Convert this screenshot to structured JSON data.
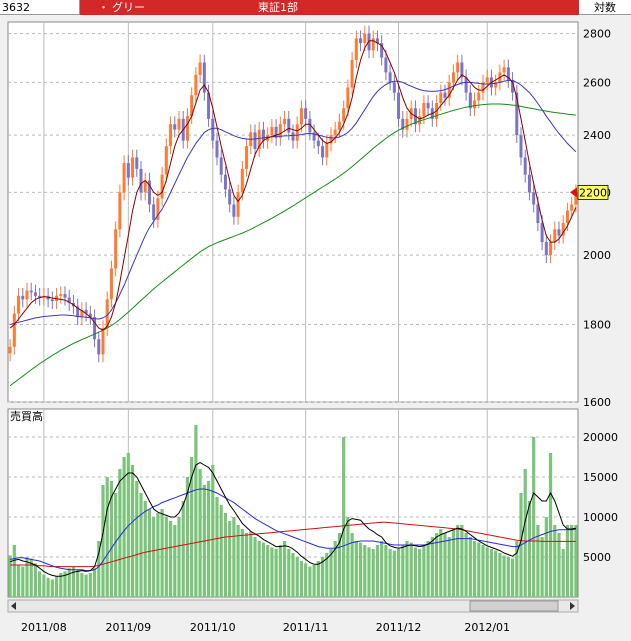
{
  "header": {
    "code": "3632",
    "bullet": "・",
    "name": "グリー",
    "market": "東証1部",
    "scale": "対数"
  },
  "colors": {
    "up": "#ff7a33",
    "down": "#7b74c6",
    "ma_short": "#8b0000",
    "ma_mid": "#3b36b8",
    "ma_long": "#1a8a1a",
    "volume_bar": "#7cc47c",
    "vol_ma_short": "#000000",
    "vol_ma_mid": "#2a2ad0",
    "vol_ma_long": "#d01010",
    "price_tag": "#ffff66",
    "price_arrow": "#e01010"
  },
  "chart_data": [
    {
      "type": "line",
      "panel": "price",
      "ylim": [
        1600,
        2850
      ],
      "yscale": "log",
      "yticks": [
        "1600",
        "1800",
        "2000",
        "2200",
        "2400",
        "2600",
        "2800"
      ],
      "xticks": [
        "2011/08",
        "2011/09",
        "2011/10",
        "2011/11",
        "2011/12",
        "2012/01"
      ],
      "current_price_label": "2200",
      "close": [
        1740,
        1830,
        1880,
        1870,
        1895,
        1890,
        1880,
        1875,
        1880,
        1870,
        1865,
        1880,
        1885,
        1875,
        1860,
        1850,
        1820,
        1840,
        1830,
        1820,
        1760,
        1720,
        1790,
        1870,
        1960,
        2080,
        2200,
        2300,
        2250,
        2320,
        2280,
        2200,
        2240,
        2160,
        2110,
        2180,
        2260,
        2360,
        2440,
        2420,
        2460,
        2380,
        2470,
        2550,
        2630,
        2680,
        2560,
        2460,
        2380,
        2320,
        2260,
        2210,
        2160,
        2120,
        2200,
        2280,
        2360,
        2410,
        2350,
        2420,
        2380,
        2400,
        2430,
        2390,
        2440,
        2460,
        2410,
        2380,
        2440,
        2500,
        2460,
        2410,
        2380,
        2360,
        2320,
        2370,
        2400,
        2420,
        2450,
        2500,
        2580,
        2690,
        2780,
        2760,
        2800,
        2730,
        2780,
        2760,
        2700,
        2640,
        2600,
        2560,
        2460,
        2420,
        2460,
        2500,
        2440,
        2470,
        2520,
        2500,
        2460,
        2520,
        2560,
        2540,
        2600,
        2640,
        2680,
        2620,
        2560,
        2500,
        2530,
        2560,
        2600,
        2620,
        2580,
        2600,
        2640,
        2660,
        2610,
        2560,
        2400,
        2320,
        2260,
        2200,
        2160,
        2100,
        2040,
        2000,
        2040,
        2080,
        2060,
        2100,
        2140,
        2160,
        2200
      ],
      "ma_short": [
        1790,
        1800,
        1815,
        1830,
        1845,
        1860,
        1870,
        1875,
        1878,
        1876,
        1874,
        1872,
        1870,
        1868,
        1862,
        1855,
        1845,
        1838,
        1830,
        1820,
        1805,
        1790,
        1785,
        1795,
        1820,
        1860,
        1920,
        1990,
        2060,
        2140,
        2200,
        2230,
        2240,
        2225,
        2200,
        2190,
        2200,
        2240,
        2300,
        2360,
        2400,
        2420,
        2440,
        2470,
        2520,
        2570,
        2590,
        2560,
        2500,
        2430,
        2360,
        2300,
        2240,
        2190,
        2170,
        2190,
        2230,
        2280,
        2330,
        2360,
        2380,
        2390,
        2395,
        2400,
        2405,
        2415,
        2425,
        2420,
        2415,
        2425,
        2440,
        2440,
        2420,
        2400,
        2380,
        2370,
        2375,
        2390,
        2410,
        2440,
        2480,
        2540,
        2620,
        2690,
        2740,
        2770,
        2770,
        2760,
        2750,
        2720,
        2680,
        2640,
        2590,
        2540,
        2500,
        2480,
        2470,
        2460,
        2465,
        2475,
        2480,
        2490,
        2510,
        2530,
        2550,
        2580,
        2610,
        2630,
        2620,
        2600,
        2580,
        2570,
        2570,
        2585,
        2600,
        2610,
        2620,
        2630,
        2620,
        2600,
        2540,
        2460,
        2380,
        2300,
        2230,
        2170,
        2110,
        2060,
        2040,
        2040,
        2050,
        2070,
        2090,
        2120,
        2150
      ],
      "ma_mid": [
        1800,
        1803,
        1806,
        1809,
        1812,
        1815,
        1818,
        1820,
        1822,
        1823,
        1824,
        1825,
        1826,
        1826,
        1825,
        1824,
        1822,
        1821,
        1820,
        1818,
        1816,
        1815,
        1818,
        1825,
        1840,
        1860,
        1885,
        1910,
        1940,
        1970,
        2000,
        2030,
        2060,
        2085,
        2105,
        2125,
        2145,
        2170,
        2200,
        2230,
        2260,
        2290,
        2320,
        2345,
        2370,
        2390,
        2410,
        2420,
        2425,
        2425,
        2420,
        2412,
        2405,
        2398,
        2392,
        2388,
        2386,
        2385,
        2386,
        2388,
        2390,
        2392,
        2394,
        2395,
        2396,
        2397,
        2398,
        2399,
        2400,
        2402,
        2405,
        2406,
        2404,
        2400,
        2396,
        2392,
        2390,
        2390,
        2393,
        2400,
        2410,
        2425,
        2445,
        2470,
        2495,
        2520,
        2545,
        2565,
        2580,
        2592,
        2600,
        2605,
        2605,
        2600,
        2592,
        2585,
        2578,
        2572,
        2568,
        2566,
        2565,
        2566,
        2568,
        2572,
        2578,
        2585,
        2592,
        2598,
        2600,
        2600,
        2598,
        2596,
        2594,
        2594,
        2595,
        2597,
        2600,
        2605,
        2608,
        2608,
        2600,
        2590,
        2575,
        2560,
        2540,
        2518,
        2495,
        2470,
        2448,
        2426,
        2406,
        2388,
        2370,
        2355,
        2340
      ],
      "ma_long": [
        1640,
        1648,
        1656,
        1664,
        1672,
        1680,
        1688,
        1696,
        1703,
        1710,
        1717,
        1724,
        1731,
        1737,
        1743,
        1749,
        1754,
        1759,
        1764,
        1769,
        1774,
        1779,
        1784,
        1790,
        1797,
        1805,
        1814,
        1824,
        1834,
        1845,
        1856,
        1867,
        1878,
        1889,
        1900,
        1910,
        1920,
        1930,
        1940,
        1950,
        1960,
        1970,
        1980,
        1990,
        2000,
        2010,
        2018,
        2026,
        2032,
        2038,
        2043,
        2048,
        2053,
        2058,
        2063,
        2068,
        2074,
        2080,
        2087,
        2094,
        2101,
        2108,
        2115,
        2123,
        2131,
        2139,
        2147,
        2155,
        2164,
        2173,
        2182,
        2191,
        2200,
        2209,
        2218,
        2227,
        2236,
        2245,
        2255,
        2265,
        2276,
        2288,
        2300,
        2313,
        2326,
        2339,
        2352,
        2364,
        2376,
        2388,
        2399,
        2409,
        2418,
        2426,
        2433,
        2440,
        2446,
        2452,
        2457,
        2462,
        2467,
        2472,
        2477,
        2482,
        2487,
        2492,
        2496,
        2500,
        2504,
        2507,
        2510,
        2512,
        2514,
        2515,
        2516,
        2516,
        2516,
        2515,
        2514,
        2512,
        2510,
        2507,
        2504,
        2501,
        2498,
        2495,
        2492,
        2489,
        2486,
        2484,
        2482,
        2480,
        2478,
        2476,
        2474
      ]
    },
    {
      "type": "bar",
      "panel": "volume",
      "title": "売買高",
      "ylim": [
        0,
        21500
      ],
      "yticks": [
        "5000",
        "10000",
        "15000",
        "20000"
      ],
      "values": [
        5200,
        6500,
        4000,
        3800,
        5000,
        4800,
        4200,
        3200,
        2800,
        2400,
        2200,
        2600,
        3000,
        3200,
        3600,
        3800,
        3400,
        3000,
        2800,
        3000,
        3600,
        7000,
        14000,
        15000,
        14500,
        13000,
        16000,
        17500,
        18000,
        16500,
        14500,
        13000,
        12000,
        11000,
        10000,
        10500,
        11000,
        10000,
        9500,
        9000,
        10000,
        12000,
        15000,
        17500,
        21500,
        16000,
        14000,
        14500,
        16500,
        12500,
        11500,
        10500,
        9500,
        10000,
        9000,
        8500,
        8000,
        8200,
        7500,
        7000,
        6800,
        6500,
        6200,
        6000,
        6500,
        7000,
        6000,
        5500,
        5000,
        4500,
        4200,
        3800,
        4000,
        4500,
        5000,
        5500,
        6000,
        7000,
        8000,
        20000,
        10000,
        8000,
        7000,
        6800,
        6500,
        6200,
        6000,
        6500,
        7000,
        6500,
        6000,
        5800,
        6000,
        6500,
        7000,
        6800,
        6200,
        6000,
        6500,
        7000,
        7500,
        8000,
        8500,
        8000,
        7500,
        8500,
        9000,
        9000,
        8000,
        7500,
        7000,
        6800,
        6500,
        6200,
        6000,
        5800,
        5500,
        5200,
        5000,
        4800,
        7000,
        13000,
        16000,
        12000,
        20000,
        9000,
        7500,
        10000,
        18000,
        9000,
        8000,
        6000,
        9000,
        9000,
        9000
      ],
      "ma_short": [
        4400,
        4600,
        4700,
        4500,
        4400,
        4200,
        4000,
        3600,
        3200,
        2900,
        2700,
        2600,
        2600,
        2700,
        2900,
        3100,
        3200,
        3300,
        3200,
        3300,
        3800,
        5500,
        8000,
        11000,
        12500,
        13500,
        14500,
        15000,
        15500,
        15500,
        15000,
        14000,
        13000,
        12000,
        11000,
        10600,
        10400,
        10200,
        10000,
        10000,
        10500,
        11500,
        13000,
        15000,
        16500,
        16800,
        16500,
        16200,
        15500,
        14500,
        13500,
        12500,
        11500,
        10800,
        10000,
        9200,
        8700,
        8200,
        7900,
        7600,
        7200,
        6900,
        6600,
        6300,
        6300,
        6400,
        6300,
        6000,
        5600,
        5100,
        4700,
        4300,
        4100,
        4100,
        4400,
        4800,
        5300,
        6000,
        6800,
        8500,
        9500,
        9800,
        9700,
        9600,
        9000,
        8500,
        8200,
        7800,
        7500,
        6800,
        6400,
        6200,
        6100,
        6200,
        6400,
        6500,
        6400,
        6300,
        6400,
        6600,
        7000,
        7500,
        7800,
        8000,
        8200,
        8400,
        8600,
        8500,
        8200,
        7800,
        7400,
        7000,
        6700,
        6400,
        6200,
        6000,
        5800,
        5500,
        5300,
        5100,
        5500,
        7000,
        9500,
        11500,
        13000,
        12500,
        12000,
        12000,
        13000,
        12000,
        10500,
        9000,
        8500,
        8500,
        8600
      ],
      "ma_mid": [
        4700,
        4800,
        4900,
        4900,
        4800,
        4700,
        4600,
        4500,
        4300,
        4100,
        3900,
        3700,
        3600,
        3500,
        3400,
        3400,
        3400,
        3400,
        3300,
        3300,
        3400,
        3800,
        4500,
        5300,
        6100,
        6900,
        7600,
        8300,
        8900,
        9400,
        9900,
        10300,
        10700,
        11000,
        11300,
        11500,
        11800,
        12000,
        12200,
        12400,
        12600,
        12800,
        13000,
        13200,
        13400,
        13500,
        13500,
        13400,
        13200,
        13000,
        12700,
        12400,
        12100,
        11800,
        11400,
        11000,
        10600,
        10200,
        9800,
        9500,
        9200,
        8900,
        8600,
        8300,
        8100,
        7900,
        7700,
        7500,
        7300,
        7100,
        6900,
        6700,
        6500,
        6300,
        6200,
        6100,
        6100,
        6100,
        6200,
        6400,
        6600,
        6800,
        6900,
        7000,
        7000,
        7000,
        7000,
        6900,
        6800,
        6700,
        6600,
        6500,
        6500,
        6500,
        6500,
        6500,
        6500,
        6500,
        6500,
        6600,
        6700,
        6800,
        6900,
        7000,
        7100,
        7200,
        7300,
        7300,
        7300,
        7300,
        7200,
        7100,
        7000,
        6900,
        6800,
        6700,
        6600,
        6500,
        6400,
        6300,
        6300,
        6500,
        6800,
        7100,
        7400,
        7600,
        7800,
        8000,
        8200,
        8300,
        8400,
        8400,
        8400,
        8400,
        8500
      ],
      "ma_long": [
        4000,
        4000,
        4000,
        4000,
        4000,
        4000,
        3950,
        3900,
        3900,
        3850,
        3800,
        3800,
        3800,
        3800,
        3800,
        3800,
        3800,
        3800,
        3800,
        3800,
        3850,
        3950,
        4100,
        4250,
        4400,
        4550,
        4700,
        4850,
        5000,
        5150,
        5300,
        5450,
        5600,
        5700,
        5800,
        5900,
        6000,
        6100,
        6200,
        6300,
        6400,
        6500,
        6600,
        6700,
        6800,
        6900,
        7000,
        7100,
        7200,
        7300,
        7400,
        7500,
        7550,
        7600,
        7650,
        7700,
        7750,
        7800,
        7850,
        7900,
        7950,
        8000,
        8050,
        8100,
        8150,
        8200,
        8250,
        8300,
        8350,
        8400,
        8450,
        8500,
        8550,
        8600,
        8650,
        8700,
        8750,
        8800,
        8850,
        8900,
        8950,
        9000,
        9050,
        9100,
        9150,
        9200,
        9250,
        9300,
        9350,
        9350,
        9300,
        9250,
        9200,
        9150,
        9100,
        9050,
        9000,
        8950,
        8900,
        8850,
        8800,
        8750,
        8700,
        8650,
        8600,
        8550,
        8500,
        8400,
        8300,
        8200,
        8100,
        8000,
        7900,
        7800,
        7700,
        7600,
        7500,
        7400,
        7300,
        7200,
        7100,
        7050,
        7000,
        7000,
        7000,
        7000,
        6950,
        6950,
        6950,
        6950,
        6950,
        6950,
        6950,
        6950,
        6950
      ]
    }
  ]
}
